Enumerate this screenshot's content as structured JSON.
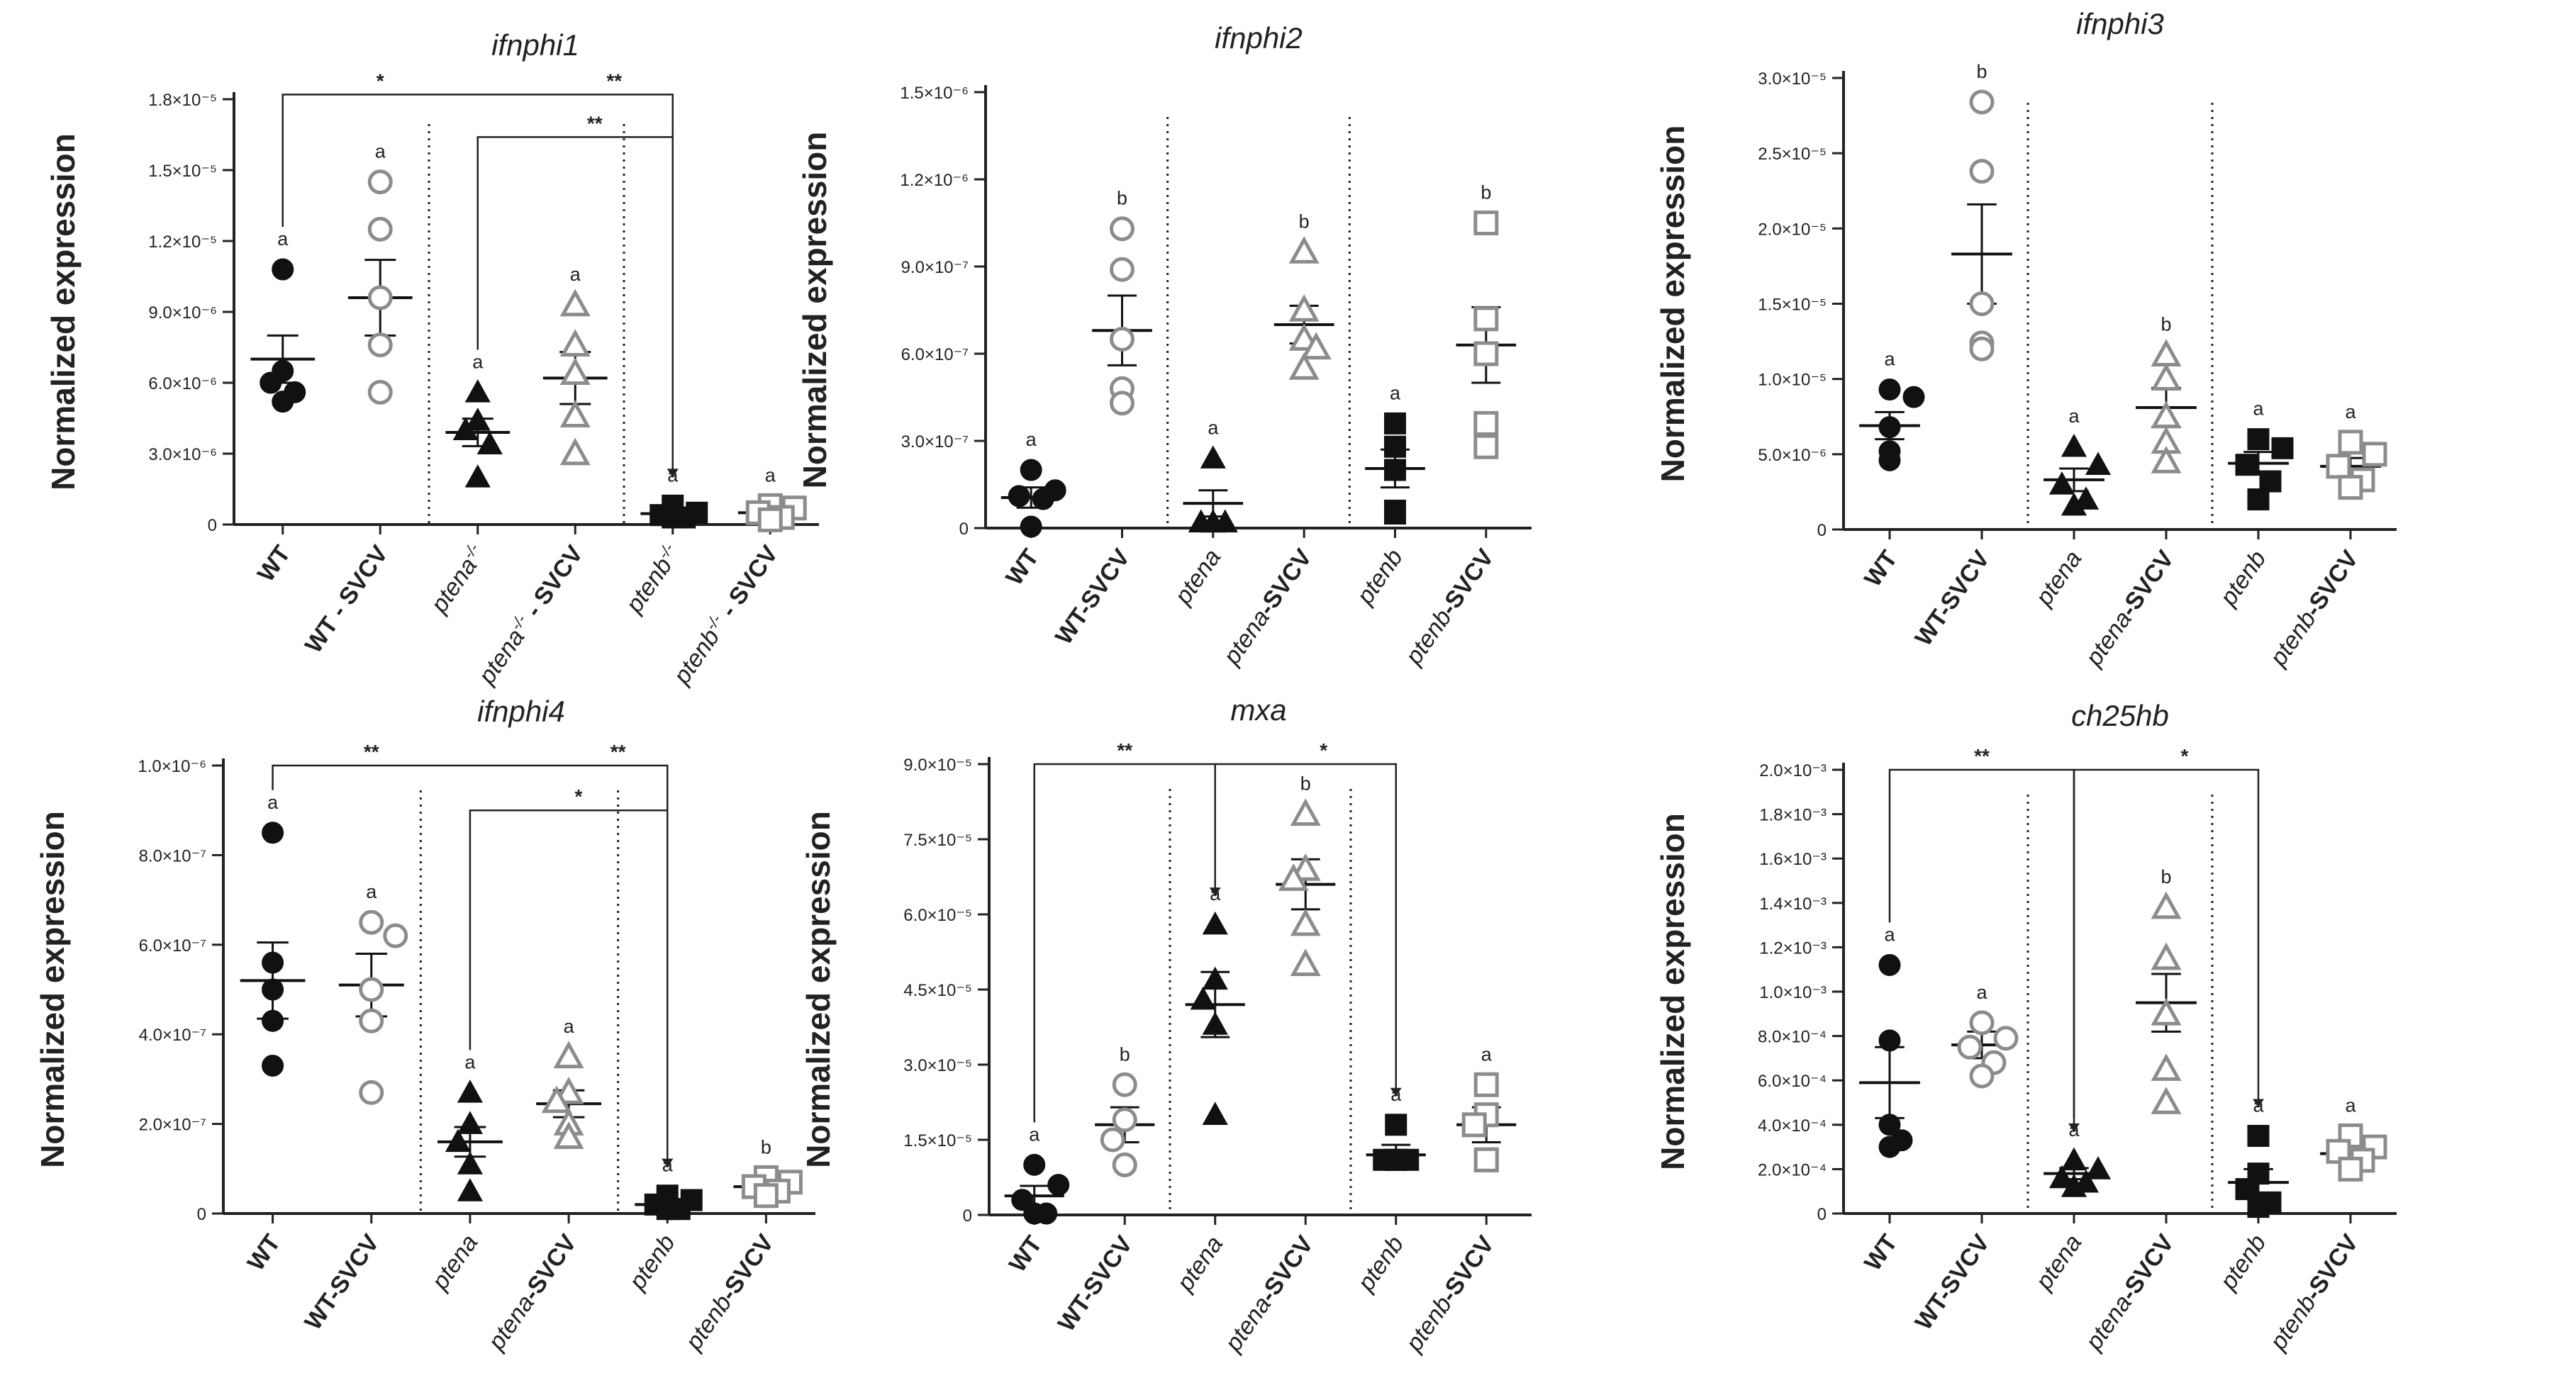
{
  "figure": {
    "colors": {
      "black": "#111111",
      "gray": "#8c8c8c",
      "axis": "#222222"
    },
    "panels": [
      {
        "title": "ifnphi1",
        "ylabel": "Normalized expression",
        "yticks": [
          "0",
          "3.0×10⁻⁶",
          "6.0×10⁻⁶",
          "9.0×10⁻⁶",
          "1.2×10⁻⁵",
          "1.5×10⁻⁵",
          "1.8×10⁻⁵"
        ],
        "ymax": 1.8e-05,
        "xlabels": [
          [
            {
              "t": "WT",
              "i": false
            }
          ],
          [
            {
              "t": "WT - SVCV",
              "i": false
            }
          ],
          [
            {
              "t": "ptena",
              "i": true
            },
            {
              "t": "-/-",
              "i": true,
              "sup": true
            }
          ],
          [
            {
              "t": "ptena",
              "i": true
            },
            {
              "t": "-/-",
              "i": true,
              "sup": true
            },
            {
              "t": " - SVCV",
              "i": false
            }
          ],
          [
            {
              "t": "ptenb",
              "i": true
            },
            {
              "t": "-/-",
              "i": true,
              "sup": true
            }
          ],
          [
            {
              "t": "ptenb",
              "i": true
            },
            {
              "t": "-/-",
              "i": true,
              "sup": true
            },
            {
              "t": " - SVCV",
              "i": false
            }
          ]
        ],
        "letters": [
          "a",
          "a",
          "a",
          "a",
          "a",
          "a"
        ],
        "brackets": [
          {
            "from": 0,
            "to": 4,
            "stars": "*",
            "star_at": 1,
            "top": 1.82e-05,
            "also_star": "**",
            "also_at": 3.4
          },
          {
            "from": 2,
            "to": 4,
            "stars": "**",
            "star_at": 3.2,
            "top": 1.64e-05
          }
        ]
      },
      {
        "title": "ifnphi2",
        "ylabel": "Normalized expression",
        "yticks": [
          "0",
          "3.0×10⁻⁷",
          "6.0×10⁻⁷",
          "9.0×10⁻⁷",
          "1.2×10⁻⁶",
          "1.5×10⁻⁶"
        ],
        "ymax": 1.5e-06,
        "xlabels": [
          [
            {
              "t": "WT",
              "i": false
            }
          ],
          [
            {
              "t": "WT-SVCV",
              "i": false
            }
          ],
          [
            {
              "t": "ptena",
              "i": true
            }
          ],
          [
            {
              "t": "ptena",
              "i": true
            },
            {
              "t": "-SVCV",
              "i": false
            }
          ],
          [
            {
              "t": "ptenb",
              "i": true
            }
          ],
          [
            {
              "t": "ptenb",
              "i": true
            },
            {
              "t": "-SVCV",
              "i": false
            }
          ]
        ],
        "letters": [
          "a",
          "b",
          "a",
          "b",
          "a",
          "b"
        ],
        "brackets": []
      },
      {
        "title": "ifnphi3",
        "ylabel": "Normalized expression",
        "yticks": [
          "0",
          "5.0×10⁻⁶",
          "1.0×10⁻⁵",
          "1.5×10⁻⁵",
          "2.0×10⁻⁵",
          "2.5×10⁻⁵",
          "3.0×10⁻⁵"
        ],
        "ymax": 3e-05,
        "xlabels": [
          [
            {
              "t": "WT",
              "i": false
            }
          ],
          [
            {
              "t": "WT-SVCV",
              "i": false
            }
          ],
          [
            {
              "t": "ptena",
              "i": true
            }
          ],
          [
            {
              "t": "ptena",
              "i": true
            },
            {
              "t": "-SVCV",
              "i": false
            }
          ],
          [
            {
              "t": "ptenb",
              "i": true
            }
          ],
          [
            {
              "t": "ptenb",
              "i": true
            },
            {
              "t": "-SVCV",
              "i": false
            }
          ]
        ],
        "letters": [
          "a",
          "b",
          "a",
          "b",
          "a",
          "a"
        ],
        "brackets": []
      },
      {
        "title": "ifnphi4",
        "ylabel": "Normalized expression",
        "yticks": [
          "0",
          "2.0×10⁻⁷",
          "4.0×10⁻⁷",
          "6.0×10⁻⁷",
          "8.0×10⁻⁷",
          "1.0×10⁻⁶"
        ],
        "ymax": 1e-06,
        "xlabels": [
          [
            {
              "t": "WT",
              "i": false
            }
          ],
          [
            {
              "t": "WT-SVCV",
              "i": false
            }
          ],
          [
            {
              "t": "ptena",
              "i": true
            }
          ],
          [
            {
              "t": "ptena",
              "i": true
            },
            {
              "t": "-SVCV",
              "i": false
            }
          ],
          [
            {
              "t": "ptenb",
              "i": true
            }
          ],
          [
            {
              "t": "ptenb",
              "i": true
            },
            {
              "t": "-SVCV",
              "i": false
            }
          ]
        ],
        "letters": [
          "a",
          "a",
          "a",
          "a",
          "a",
          "b"
        ],
        "brackets": [
          {
            "from": 0,
            "to": 4,
            "stars": "**",
            "star_at": 1,
            "top": 1e-06,
            "also_star": "**",
            "also_at": 3.5
          },
          {
            "from": 2,
            "to": 4,
            "stars": "*",
            "star_at": 3.1,
            "top": 9e-07
          }
        ]
      },
      {
        "title": "mxa",
        "ylabel": "Normalized expression",
        "yticks": [
          "0",
          "1.5×10⁻⁵",
          "3.0×10⁻⁵",
          "4.5×10⁻⁵",
          "6.0×10⁻⁵",
          "7.5×10⁻⁵",
          "9.0×10⁻⁵"
        ],
        "ymax": 9e-05,
        "xlabels": [
          [
            {
              "t": "WT",
              "i": false
            }
          ],
          [
            {
              "t": "WT-SVCV",
              "i": false
            }
          ],
          [
            {
              "t": "ptena",
              "i": true
            }
          ],
          [
            {
              "t": "ptena",
              "i": true
            },
            {
              "t": "-SVCV",
              "i": false
            }
          ],
          [
            {
              "t": "ptenb",
              "i": true
            }
          ],
          [
            {
              "t": "ptenb",
              "i": true
            },
            {
              "t": "-SVCV",
              "i": false
            }
          ]
        ],
        "letters": [
          "a",
          "b",
          "a",
          "b",
          "a",
          "a"
        ],
        "brackets": [
          {
            "from": 0,
            "to": 2,
            "stars": "**",
            "star_at": 1,
            "top": 9e-05
          },
          {
            "from": 2,
            "to": 4,
            "stars": "*",
            "star_at": 3.2,
            "top": 9e-05
          }
        ]
      },
      {
        "title": "ch25hb",
        "ylabel": "Normalized expression",
        "yticks": [
          "0",
          "2.0×10⁻⁴",
          "4.0×10⁻⁴",
          "6.0×10⁻⁴",
          "8.0×10⁻⁴",
          "1.0×10⁻³",
          "1.2×10⁻³",
          "1.4×10⁻³",
          "1.6×10⁻³",
          "1.8×10⁻³",
          "2.0×10⁻³"
        ],
        "ymax": 0.002,
        "xlabels": [
          [
            {
              "t": "WT",
              "i": false
            }
          ],
          [
            {
              "t": "WT-SVCV",
              "i": false
            }
          ],
          [
            {
              "t": "ptena",
              "i": true
            }
          ],
          [
            {
              "t": "ptena",
              "i": true
            },
            {
              "t": "-SVCV",
              "i": false
            }
          ],
          [
            {
              "t": "ptenb",
              "i": true
            }
          ],
          [
            {
              "t": "ptenb",
              "i": true
            },
            {
              "t": "-SVCV",
              "i": false
            }
          ]
        ],
        "letters": [
          "a",
          "a",
          "a",
          "b",
          "a",
          "a"
        ],
        "brackets": [
          {
            "from": 0,
            "to": 2,
            "stars": "**",
            "star_at": 1,
            "top": 0.002
          },
          {
            "from": 2,
            "to": 4,
            "stars": "*",
            "star_at": 3.2,
            "top": 0.002
          }
        ]
      }
    ]
  },
  "chart_data": [
    {
      "type": "scatter",
      "title": "ifnphi1",
      "ylabel": "Normalized expression",
      "ylim": [
        0,
        1.8e-05
      ],
      "categories": [
        "WT",
        "WT - SVCV",
        "ptena-/-",
        "ptena-/- - SVCV",
        "ptenb-/-",
        "ptenb-/- - SVCV"
      ],
      "series": [
        {
          "name": "WT",
          "points": [
            1.08e-05,
            6.5e-06,
            6e-06,
            5.6e-06,
            5.2e-06
          ],
          "mean": 7e-06,
          "sem": 1e-06
        },
        {
          "name": "WT - SVCV",
          "points": [
            1.45e-05,
            1.25e-05,
            9.6e-06,
            7.6e-06,
            5.6e-06
          ],
          "mean": 9.6e-06,
          "sem": 1.6e-06
        },
        {
          "name": "ptena-/-",
          "points": [
            5.6e-06,
            4.4e-06,
            4e-06,
            3.4e-06,
            2e-06
          ],
          "mean": 3.9e-06,
          "sem": 5.8e-07
        },
        {
          "name": "ptena-/- - SVCV",
          "points": [
            9.3e-06,
            7.6e-06,
            6.4e-06,
            4.6e-06,
            3e-06
          ],
          "mean": 6.2e-06,
          "sem": 1.1e-06
        },
        {
          "name": "ptenb-/-",
          "points": [
            8e-07,
            5e-07,
            4e-07,
            3e-07,
            3e-07
          ],
          "mean": 4.6e-07,
          "sem": 1e-07
        },
        {
          "name": "ptenb-/- - SVCV",
          "points": [
            8e-07,
            7e-07,
            5e-07,
            3e-07,
            2e-07
          ],
          "mean": 5e-07,
          "sem": 1.2e-07
        }
      ]
    },
    {
      "type": "scatter",
      "title": "ifnphi2",
      "ylabel": "Normalized expression",
      "ylim": [
        0,
        1.5e-06
      ],
      "categories": [
        "WT",
        "WT-SVCV",
        "ptena",
        "ptena-SVCV",
        "ptenb",
        "ptenb-SVCV"
      ],
      "series": [
        {
          "name": "WT",
          "points": [
            2e-07,
            1.3e-07,
            1.1e-07,
            1e-07,
            0
          ],
          "mean": 1.05e-07,
          "sem": 3.5e-08
        },
        {
          "name": "WT-SVCV",
          "points": [
            1.03e-06,
            8.9e-07,
            6.5e-07,
            4.8e-07,
            4.3e-07
          ],
          "mean": 6.8e-07,
          "sem": 1.2e-07
        },
        {
          "name": "ptena",
          "points": [
            2.4e-07,
            2e-08,
            2e-08,
            2e-08,
            2e-08
          ],
          "mean": 8.5e-08,
          "sem": 4.5e-08
        },
        {
          "name": "ptena-SVCV",
          "points": [
            9.5e-07,
            7.5e-07,
            6.5e-07,
            6.2e-07,
            5.5e-07
          ],
          "mean": 7e-07,
          "sem": 6.5e-08
        },
        {
          "name": "ptenb",
          "points": [
            3.6e-07,
            2.8e-07,
            2e-07,
            6e-08,
            5e-08
          ],
          "mean": 2.05e-07,
          "sem": 6.5e-08
        },
        {
          "name": "ptenb-SVCV",
          "points": [
            1.05e-06,
            7.2e-07,
            6e-07,
            3.6e-07,
            2.8e-07
          ],
          "mean": 6.3e-07,
          "sem": 1.3e-07
        }
      ]
    },
    {
      "type": "scatter",
      "title": "ifnphi3",
      "ylabel": "Normalized expression",
      "ylim": [
        0,
        3e-05
      ],
      "categories": [
        "WT",
        "WT-SVCV",
        "ptena",
        "ptena-SVCV",
        "ptenb",
        "ptenb-SVCV"
      ],
      "series": [
        {
          "name": "WT",
          "points": [
            9.3e-06,
            8.8e-06,
            6.8e-06,
            5.2e-06,
            4.6e-06
          ],
          "mean": 6.9e-06,
          "sem": 9e-07
        },
        {
          "name": "WT-SVCV",
          "points": [
            2.84e-05,
            2.38e-05,
            1.5e-05,
            1.24e-05,
            1.2e-05
          ],
          "mean": 1.83e-05,
          "sem": 3.3e-06
        },
        {
          "name": "ptena",
          "points": [
            5.5e-06,
            4.3e-06,
            3e-06,
            2e-06,
            1.6e-06
          ],
          "mean": 3.3e-06,
          "sem": 7.5e-07
        },
        {
          "name": "ptena-SVCV",
          "points": [
            1.16e-05,
            1e-05,
            7.5e-06,
            5.8e-06,
            4.5e-06
          ],
          "mean": 8.1e-06,
          "sem": 1.3e-06
        },
        {
          "name": "ptenb",
          "points": [
            6e-06,
            5.4e-06,
            4.3e-06,
            3.2e-06,
            2e-06
          ],
          "mean": 4.4e-06,
          "sem": 7.5e-07
        },
        {
          "name": "ptenb-SVCV",
          "points": [
            5.8e-06,
            5e-06,
            4.2e-06,
            3.3e-06,
            2.8e-06
          ],
          "mean": 4.2e-06,
          "sem": 5.5e-07
        }
      ]
    },
    {
      "type": "scatter",
      "title": "ifnphi4",
      "ylabel": "Normalized expression",
      "ylim": [
        0,
        1e-06
      ],
      "categories": [
        "WT",
        "WT-SVCV",
        "ptena",
        "ptena-SVCV",
        "ptenb",
        "ptenb-SVCV"
      ],
      "series": [
        {
          "name": "WT",
          "points": [
            8.5e-07,
            5.6e-07,
            5e-07,
            4.3e-07,
            3.3e-07
          ],
          "mean": 5.2e-07,
          "sem": 8.5e-08
        },
        {
          "name": "WT-SVCV",
          "points": [
            6.5e-07,
            6.2e-07,
            5e-07,
            4.3e-07,
            2.7e-07
          ],
          "mean": 5.1e-07,
          "sem": 7e-08
        },
        {
          "name": "ptena",
          "points": [
            2.7e-07,
            2e-07,
            1.6e-07,
            1.1e-07,
            5e-08
          ],
          "mean": 1.6e-07,
          "sem": 3.3e-08
        },
        {
          "name": "ptena-SVCV",
          "points": [
            3.5e-07,
            2.7e-07,
            2.5e-07,
            2e-07,
            1.7e-07
          ],
          "mean": 2.45e-07,
          "sem": 3e-08
        },
        {
          "name": "ptenb",
          "points": [
            4e-08,
            3e-08,
            2e-08,
            1e-08,
            1e-08
          ],
          "mean": 2e-08,
          "sem": 7e-09
        },
        {
          "name": "ptenb-SVCV",
          "points": [
            8e-08,
            7e-08,
            6e-08,
            5e-08,
            4e-08
          ],
          "mean": 6e-08,
          "sem": 1e-08
        }
      ]
    },
    {
      "type": "scatter",
      "title": "mxa",
      "ylabel": "Normalized expression",
      "ylim": [
        0,
        9e-05
      ],
      "categories": [
        "WT",
        "WT-SVCV",
        "ptena",
        "ptena-SVCV",
        "ptenb",
        "ptenb-SVCV"
      ],
      "series": [
        {
          "name": "WT",
          "points": [
            1e-05,
            6e-06,
            3e-06,
            0,
            0
          ],
          "mean": 3.8e-06,
          "sem": 2e-06
        },
        {
          "name": "WT-SVCV",
          "points": [
            2.6e-05,
            1.9e-05,
            1.5e-05,
            1e-05,
            1e-05
          ],
          "mean": 1.8e-05,
          "sem": 3.5e-06
        },
        {
          "name": "ptena",
          "points": [
            5.8e-05,
            4.7e-05,
            4.3e-05,
            3.8e-05,
            2e-05
          ],
          "mean": 4.2e-05,
          "sem": 6.5e-06
        },
        {
          "name": "ptena-SVCV",
          "points": [
            8e-05,
            6.9e-05,
            6.7e-05,
            5.8e-05,
            5e-05
          ],
          "mean": 6.6e-05,
          "sem": 5e-06
        },
        {
          "name": "ptenb",
          "points": [
            1.8e-05,
            1.1e-05,
            1.1e-05,
            1.1e-05,
            1.1e-05
          ],
          "mean": 1.2e-05,
          "sem": 2e-06
        },
        {
          "name": "ptenb-SVCV",
          "points": [
            2.6e-05,
            2e-05,
            1.8e-05,
            1.1e-05,
            1.1e-05
          ],
          "mean": 1.8e-05,
          "sem": 3.5e-06
        }
      ]
    },
    {
      "type": "scatter",
      "title": "ch25hb",
      "ylabel": "Normalized expression",
      "ylim": [
        0,
        0.002
      ],
      "categories": [
        "WT",
        "WT-SVCV",
        "ptena",
        "ptena-SVCV",
        "ptenb",
        "ptenb-SVCV"
      ],
      "series": [
        {
          "name": "WT",
          "points": [
            0.00112,
            0.00078,
            0.0004,
            0.00033,
            0.0003
          ],
          "mean": 0.00059,
          "sem": 0.00016
        },
        {
          "name": "WT-SVCV",
          "points": [
            0.00086,
            0.00079,
            0.00075,
            0.00068,
            0.00062
          ],
          "mean": 0.00076,
          "sem": 6e-05
        },
        {
          "name": "ptena",
          "points": [
            0.00024,
            0.0002,
            0.00016,
            0.00014,
            0.00012
          ],
          "mean": 0.00018,
          "sem": 2.5e-05
        },
        {
          "name": "ptena-SVCV",
          "points": [
            0.00138,
            0.00115,
            0.0009,
            0.00065,
            0.0005
          ],
          "mean": 0.00095,
          "sem": 0.00013
        },
        {
          "name": "ptenb",
          "points": [
            0.00035,
            0.00018,
            0.00011,
            5e-05,
            3e-05
          ],
          "mean": 0.00014,
          "sem": 6e-05
        },
        {
          "name": "ptenb-SVCV",
          "points": [
            0.00035,
            0.0003,
            0.00028,
            0.00024,
            0.0002
          ],
          "mean": 0.00027,
          "sem": 3e-05
        }
      ]
    }
  ]
}
